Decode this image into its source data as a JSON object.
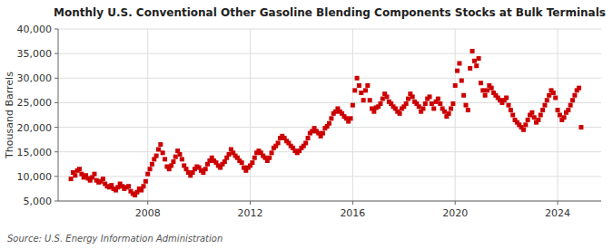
{
  "chart_data": {
    "type": "scatter",
    "title": "Monthly U.S. Conventional Other Gasoline Blending Components Stocks at Bulk Terminals",
    "ylabel": "Thousand Barrels",
    "annotations": [
      "Source: U.S. Energy Information Administration"
    ],
    "color": "#CC0000",
    "marker": "square",
    "grid": true,
    "xlim": [
      2004.5,
      2025.7
    ],
    "xticks": [
      2008,
      2012,
      2016,
      2020,
      2024
    ],
    "ylim": [
      5000,
      40000
    ],
    "yticks": [
      {
        "value": 5000,
        "label": "5,000"
      },
      {
        "value": 10000,
        "label": "10,000"
      },
      {
        "value": 15000,
        "label": "15,000"
      },
      {
        "value": 20000,
        "label": "20,000"
      },
      {
        "value": 25000,
        "label": "25,000"
      },
      {
        "value": 30000,
        "label": "30,000"
      },
      {
        "value": 35000,
        "label": "35,000"
      },
      {
        "value": 40000,
        "label": "40,000"
      }
    ],
    "x": [
      2005.0,
      2005.083,
      2005.167,
      2005.25,
      2005.333,
      2005.417,
      2005.5,
      2005.583,
      2005.667,
      2005.75,
      2005.833,
      2005.917,
      2006.0,
      2006.083,
      2006.167,
      2006.25,
      2006.333,
      2006.417,
      2006.5,
      2006.583,
      2006.667,
      2006.75,
      2006.833,
      2006.917,
      2007.0,
      2007.083,
      2007.167,
      2007.25,
      2007.333,
      2007.417,
      2007.5,
      2007.583,
      2007.667,
      2007.75,
      2007.833,
      2007.917,
      2008.0,
      2008.083,
      2008.167,
      2008.25,
      2008.333,
      2008.417,
      2008.5,
      2008.583,
      2008.667,
      2008.75,
      2008.833,
      2008.917,
      2009.0,
      2009.083,
      2009.167,
      2009.25,
      2009.333,
      2009.417,
      2009.5,
      2009.583,
      2009.667,
      2009.75,
      2009.833,
      2009.917,
      2010.0,
      2010.083,
      2010.167,
      2010.25,
      2010.333,
      2010.417,
      2010.5,
      2010.583,
      2010.667,
      2010.75,
      2010.833,
      2010.917,
      2011.0,
      2011.083,
      2011.167,
      2011.25,
      2011.333,
      2011.417,
      2011.5,
      2011.583,
      2011.667,
      2011.75,
      2011.833,
      2011.917,
      2012.0,
      2012.083,
      2012.167,
      2012.25,
      2012.333,
      2012.417,
      2012.5,
      2012.583,
      2012.667,
      2012.75,
      2012.833,
      2012.917,
      2013.0,
      2013.083,
      2013.167,
      2013.25,
      2013.333,
      2013.417,
      2013.5,
      2013.583,
      2013.667,
      2013.75,
      2013.833,
      2013.917,
      2014.0,
      2014.083,
      2014.167,
      2014.25,
      2014.333,
      2014.417,
      2014.5,
      2014.583,
      2014.667,
      2014.75,
      2014.833,
      2014.917,
      2015.0,
      2015.083,
      2015.167,
      2015.25,
      2015.333,
      2015.417,
      2015.5,
      2015.583,
      2015.667,
      2015.75,
      2015.833,
      2015.917,
      2016.0,
      2016.083,
      2016.167,
      2016.25,
      2016.333,
      2016.417,
      2016.5,
      2016.583,
      2016.667,
      2016.75,
      2016.833,
      2016.917,
      2017.0,
      2017.083,
      2017.167,
      2017.25,
      2017.333,
      2017.417,
      2017.5,
      2017.583,
      2017.667,
      2017.75,
      2017.833,
      2017.917,
      2018.0,
      2018.083,
      2018.167,
      2018.25,
      2018.333,
      2018.417,
      2018.5,
      2018.583,
      2018.667,
      2018.75,
      2018.833,
      2018.917,
      2019.0,
      2019.083,
      2019.167,
      2019.25,
      2019.333,
      2019.417,
      2019.5,
      2019.583,
      2019.667,
      2019.75,
      2019.833,
      2019.917,
      2020.0,
      2020.083,
      2020.167,
      2020.25,
      2020.333,
      2020.417,
      2020.5,
      2020.583,
      2020.667,
      2020.75,
      2020.833,
      2020.917,
      2021.0,
      2021.083,
      2021.167,
      2021.25,
      2021.333,
      2021.417,
      2021.5,
      2021.583,
      2021.667,
      2021.75,
      2021.833,
      2021.917,
      2022.0,
      2022.083,
      2022.167,
      2022.25,
      2022.333,
      2022.417,
      2022.5,
      2022.583,
      2022.667,
      2022.75,
      2022.833,
      2022.917,
      2023.0,
      2023.083,
      2023.167,
      2023.25,
      2023.333,
      2023.417,
      2023.5,
      2023.583,
      2023.667,
      2023.75,
      2023.833,
      2023.917,
      2024.0,
      2024.083,
      2024.167,
      2024.25,
      2024.333,
      2024.417,
      2024.5,
      2024.583,
      2024.667,
      2024.75,
      2024.833,
      2024.917
    ],
    "values": [
      9500,
      10800,
      10200,
      11200,
      11500,
      10500,
      9800,
      10200,
      9600,
      9200,
      9800,
      10500,
      9200,
      8800,
      9000,
      9500,
      8500,
      8000,
      7800,
      8200,
      7500,
      7200,
      7800,
      8500,
      8000,
      7500,
      7800,
      8000,
      7000,
      6500,
      6200,
      6800,
      7500,
      7200,
      8000,
      9000,
      10500,
      11500,
      12500,
      13500,
      14200,
      15500,
      16500,
      14800,
      13500,
      12000,
      11500,
      12200,
      13000,
      14000,
      15200,
      14500,
      13500,
      12200,
      11500,
      10800,
      10200,
      10800,
      11500,
      12000,
      11800,
      11200,
      10800,
      11500,
      12500,
      13200,
      13800,
      13200,
      12800,
      12200,
      11800,
      12500,
      13000,
      13800,
      14500,
      15500,
      14800,
      14200,
      13800,
      13200,
      12800,
      11800,
      11200,
      11800,
      12200,
      12800,
      13800,
      14800,
      15200,
      14800,
      14200,
      13800,
      13200,
      13800,
      14800,
      15800,
      16200,
      16800,
      17800,
      18200,
      17800,
      17200,
      16800,
      16200,
      15800,
      15200,
      14800,
      15200,
      15800,
      16200,
      16800,
      17800,
      18800,
      19200,
      19800,
      19200,
      18800,
      18200,
      18800,
      19800,
      20200,
      20800,
      21800,
      22800,
      23200,
      23800,
      23200,
      22800,
      22200,
      21800,
      21200,
      21800,
      24500,
      27500,
      30000,
      28500,
      27000,
      25500,
      27500,
      28500,
      25500,
      23800,
      23200,
      24000,
      24200,
      24800,
      25800,
      26800,
      26200,
      25200,
      24800,
      24200,
      23800,
      23200,
      22800,
      23800,
      24200,
      24800,
      25800,
      26800,
      26200,
      25200,
      24800,
      24200,
      23200,
      23800,
      24800,
      25800,
      26200,
      24800,
      23800,
      25200,
      25800,
      24800,
      23800,
      23200,
      22200,
      22800,
      23800,
      24800,
      28500,
      31500,
      33000,
      29500,
      26500,
      24500,
      23500,
      32000,
      35500,
      33500,
      32500,
      34000,
      29000,
      27500,
      26500,
      27500,
      28500,
      28000,
      27000,
      26500,
      26000,
      25500,
      25000,
      25500,
      26000,
      24500,
      23500,
      22500,
      21500,
      21000,
      20500,
      20000,
      19500,
      20500,
      21500,
      22500,
      23000,
      22000,
      21000,
      21500,
      22500,
      23500,
      24500,
      25500,
      26500,
      27500,
      27000,
      26000,
      23500,
      22500,
      21500,
      22000,
      23000,
      23500,
      24500,
      25500,
      26500,
      27500,
      28000,
      20000
    ]
  }
}
